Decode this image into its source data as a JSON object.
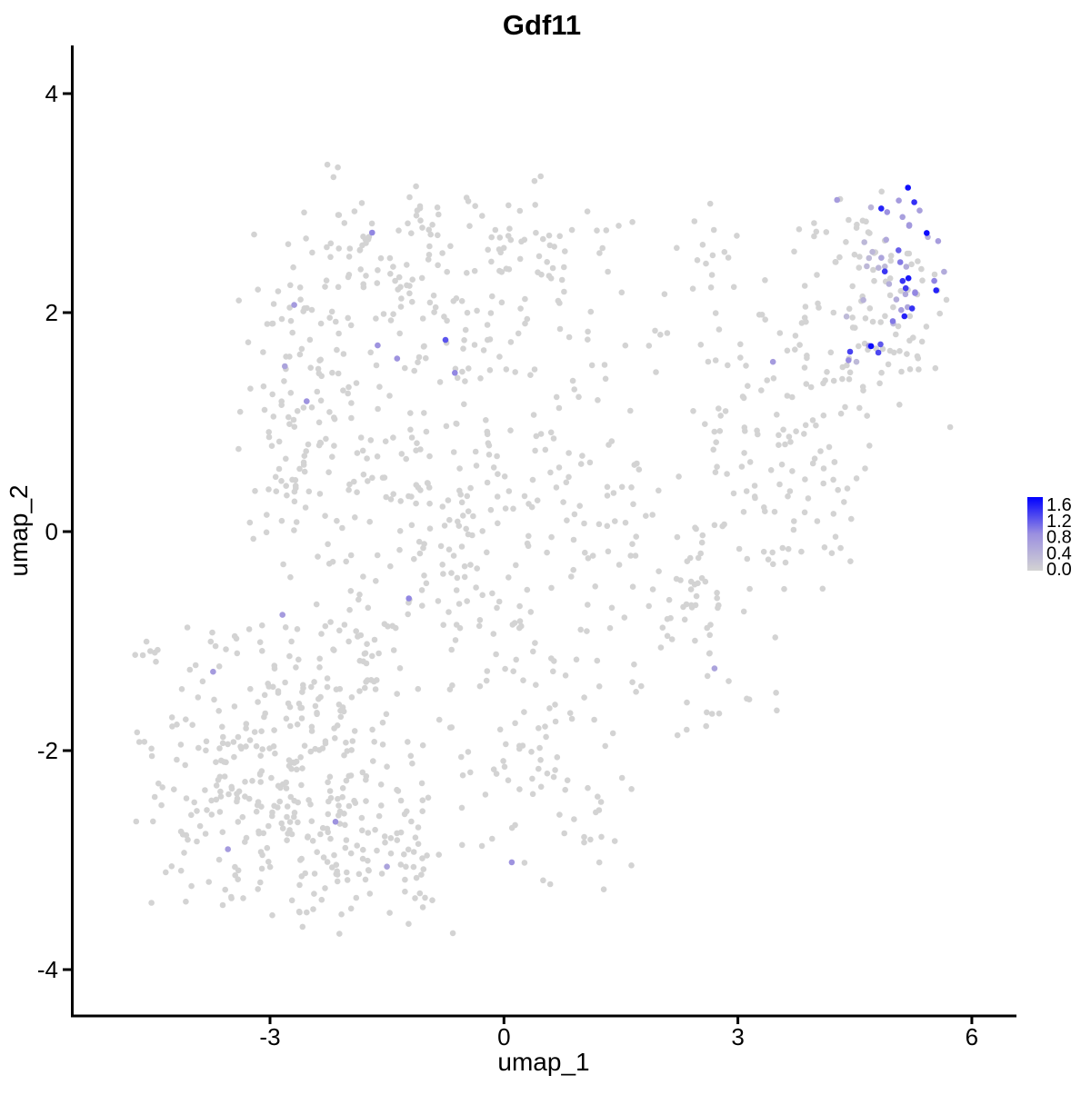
{
  "title": "Gdf11",
  "axes": {
    "x": {
      "label": "umap_1",
      "ticks": [
        "-3",
        "0",
        "3",
        "6"
      ],
      "tick_values": [
        -3,
        0,
        3,
        6
      ],
      "range": [
        -5.55,
        6.57
      ]
    },
    "y": {
      "label": "umap_2",
      "ticks": [
        "-4",
        "-2",
        "0",
        "2",
        "4"
      ],
      "tick_values": [
        -4,
        -2,
        0,
        2,
        4
      ],
      "range": [
        -4.43,
        4.44
      ]
    }
  },
  "legend": {
    "labels": [
      "1.6",
      "1.2",
      "0.8",
      "0.4",
      "0.0"
    ],
    "min": 0.0,
    "max": 1.7,
    "color_low": "#D3D3D3",
    "color_mid": "#9B8FE0",
    "color_high": "#0000FF"
  },
  "chart_data": {
    "type": "scatter",
    "gene": "Gdf11",
    "point_radius": 3.3,
    "seed": 20240817,
    "background_point_color": "#D3D3D3",
    "background_value": 0,
    "clusters": [
      {
        "role": "background",
        "cx": -1.7,
        "cy": 2.55,
        "sx": 0.75,
        "sy": 0.38,
        "n": 85
      },
      {
        "role": "background",
        "cx": 0.2,
        "cy": 2.45,
        "sx": 0.95,
        "sy": 0.42,
        "n": 95
      },
      {
        "role": "background",
        "cx": -2.6,
        "cy": 1.15,
        "sx": 0.4,
        "sy": 0.65,
        "n": 85
      },
      {
        "role": "background",
        "cx": -0.6,
        "cy": 0.3,
        "sx": 1.35,
        "sy": 0.85,
        "n": 320
      },
      {
        "role": "background",
        "cx": -2.7,
        "cy": -2.15,
        "sx": 1.0,
        "sy": 0.72,
        "n": 360
      },
      {
        "role": "background",
        "cx": -1.7,
        "cy": -3.05,
        "sx": 0.7,
        "sy": 0.3,
        "n": 55
      },
      {
        "role": "background",
        "cx": 0.5,
        "cy": -1.9,
        "sx": 0.65,
        "sy": 0.75,
        "n": 95
      },
      {
        "role": "background",
        "cx": 2.5,
        "cy": -0.75,
        "sx": 0.55,
        "sy": 0.55,
        "n": 70
      },
      {
        "role": "background",
        "cx": 3.6,
        "cy": 0.7,
        "sx": 0.65,
        "sy": 0.65,
        "n": 115
      },
      {
        "role": "background",
        "cx": 4.7,
        "cy": 2.0,
        "sx": 0.55,
        "sy": 0.55,
        "n": 105
      },
      {
        "role": "background",
        "cx": 2.7,
        "cy": 2.15,
        "sx": 0.5,
        "sy": 0.45,
        "n": 28
      },
      {
        "role": "background",
        "cx": -4.65,
        "cy": -1.2,
        "sx": 0.12,
        "sy": 0.2,
        "n": 4
      },
      {
        "role": "expressing",
        "cx": 4.95,
        "cy": 2.3,
        "sx": 0.33,
        "sy": 0.42,
        "n": 52,
        "value_min": 0.3,
        "value_max": 1.7,
        "skew": 1.8
      }
    ],
    "expressing_singles": [
      {
        "x": -1.69,
        "y": 2.73,
        "value": 0.9
      },
      {
        "x": -2.69,
        "y": 2.07,
        "value": 0.7
      },
      {
        "x": -1.62,
        "y": 1.7,
        "value": 0.8
      },
      {
        "x": -1.37,
        "y": 1.58,
        "value": 0.8
      },
      {
        "x": -0.75,
        "y": 1.75,
        "value": 1.2
      },
      {
        "x": -2.81,
        "y": 1.51,
        "value": 0.6
      },
      {
        "x": -0.63,
        "y": 1.45,
        "value": 0.9
      },
      {
        "x": -2.53,
        "y": 1.19,
        "value": 0.8
      },
      {
        "x": 3.45,
        "y": 1.55,
        "value": 0.7
      },
      {
        "x": -1.22,
        "y": -0.61,
        "value": 0.9
      },
      {
        "x": -2.84,
        "y": -0.76,
        "value": 0.7
      },
      {
        "x": -3.73,
        "y": -1.28,
        "value": 0.7
      },
      {
        "x": 2.7,
        "y": -1.25,
        "value": 0.6
      },
      {
        "x": -2.16,
        "y": -2.65,
        "value": 0.8
      },
      {
        "x": -3.54,
        "y": -2.9,
        "value": 0.7
      },
      {
        "x": -1.5,
        "y": -3.06,
        "value": 0.6
      },
      {
        "x": 0.1,
        "y": -3.02,
        "value": 0.8
      }
    ]
  }
}
